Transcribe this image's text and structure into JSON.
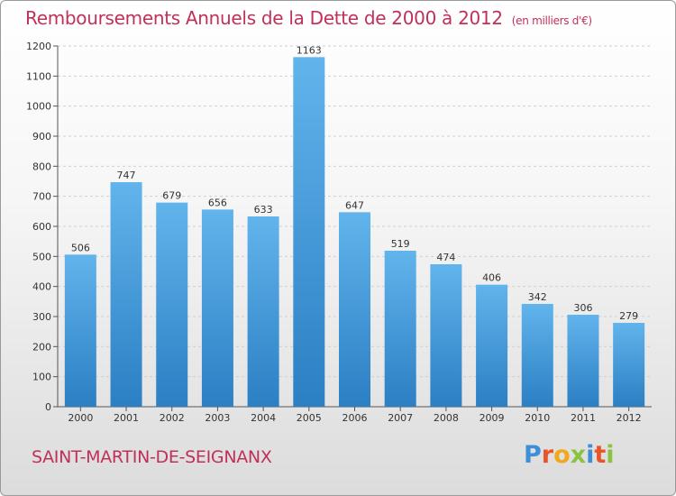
{
  "title": "Remboursements Annuels de la Dette de 2000 à 2012",
  "subtitle": "(en milliers d'€)",
  "city": "SAINT-MARTIN-DE-SEIGNANX",
  "logo": {
    "letters": [
      "P",
      "r",
      "o",
      "x",
      "i",
      "t",
      "i"
    ],
    "colors": [
      "#3f8ed8",
      "#e8552b",
      "#f2a81d",
      "#8ac43f",
      "#3f8ed8",
      "#e8552b",
      "#8ac43f"
    ]
  },
  "colors": {
    "bar_top": "#62b4ec",
    "bar_bottom": "#2b7fc3",
    "title": "#c0315a"
  },
  "chart_data": {
    "type": "bar",
    "categories": [
      "2000",
      "2001",
      "2002",
      "2003",
      "2004",
      "2005",
      "2006",
      "2007",
      "2008",
      "2009",
      "2010",
      "2011",
      "2012"
    ],
    "values": [
      506,
      747,
      679,
      656,
      633,
      1163,
      647,
      519,
      474,
      406,
      342,
      306,
      279
    ],
    "title": "Remboursements Annuels de la Dette de 2000 à 2012",
    "xlabel": "",
    "ylabel": "",
    "ylim": [
      0,
      1200
    ],
    "yticks": [
      0,
      100,
      200,
      300,
      400,
      500,
      600,
      700,
      800,
      900,
      1000,
      1100,
      1200
    ],
    "grid": true,
    "legend": "none"
  }
}
